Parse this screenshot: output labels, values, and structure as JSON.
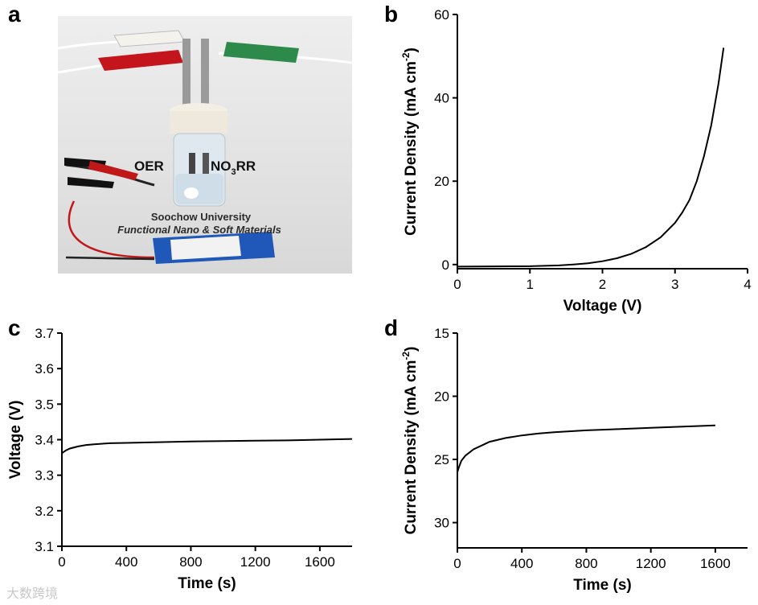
{
  "panels": {
    "a": "a",
    "b": "b",
    "c": "c",
    "d": "d"
  },
  "photo": {
    "left_label": "OER",
    "right_label_main": "NO",
    "right_label_sub": "3",
    "right_label_end": "RR",
    "line1": "Soochow University",
    "line2": "Functional Nano & Soft Materials"
  },
  "watermark": "大数跨境",
  "chart_data": [
    {
      "id": "b",
      "type": "line",
      "xlabel": "Voltage (V)",
      "ylabel_main": "Current Density (mA cm",
      "ylabel_sup": "-2",
      "ylabel_end": ")",
      "xlim": [
        0,
        4
      ],
      "ylim": [
        -1,
        60
      ],
      "xticks": [
        0,
        1,
        2,
        3,
        4
      ],
      "yticks": [
        0,
        20,
        40,
        60
      ],
      "x": [
        0,
        1.0,
        1.2,
        1.4,
        1.6,
        1.8,
        2.0,
        2.2,
        2.4,
        2.6,
        2.8,
        3.0,
        3.1,
        3.2,
        3.3,
        3.4,
        3.5,
        3.6,
        3.67
      ],
      "y": [
        -0.5,
        -0.4,
        -0.3,
        -0.2,
        0.0,
        0.3,
        0.8,
        1.5,
        2.6,
        4.2,
        6.5,
        10.0,
        12.5,
        15.5,
        20.0,
        26.0,
        33.5,
        43.5,
        52.0
      ]
    },
    {
      "id": "c",
      "type": "line",
      "xlabel": "Time (s)",
      "ylabel": "Voltage (V)",
      "xlim": [
        0,
        1800
      ],
      "ylim": [
        3.1,
        3.7
      ],
      "xticks": [
        0,
        400,
        800,
        1200,
        1600
      ],
      "yticks": [
        3.1,
        3.2,
        3.3,
        3.4,
        3.5,
        3.6,
        3.7
      ],
      "x": [
        0,
        25,
        50,
        100,
        150,
        200,
        300,
        400,
        600,
        800,
        1000,
        1200,
        1400,
        1600,
        1800
      ],
      "y": [
        3.362,
        3.37,
        3.375,
        3.381,
        3.385,
        3.387,
        3.39,
        3.391,
        3.393,
        3.395,
        3.396,
        3.397,
        3.398,
        3.4,
        3.402
      ]
    },
    {
      "id": "d",
      "type": "line",
      "xlabel": "Time (s)",
      "ylabel_main": "Current Density (mA cm",
      "ylabel_sup": "-2",
      "ylabel_end": ")",
      "xlim": [
        0,
        1800
      ],
      "ylim": [
        15,
        32
      ],
      "y_inverted": true,
      "xticks": [
        0,
        400,
        800,
        1200,
        1600
      ],
      "yticks": [
        15,
        20,
        25,
        30
      ],
      "x": [
        0,
        10,
        25,
        50,
        100,
        150,
        200,
        300,
        400,
        500,
        600,
        800,
        1000,
        1200,
        1400,
        1600
      ],
      "y": [
        26.0,
        25.6,
        25.1,
        24.7,
        24.2,
        23.9,
        23.6,
        23.3,
        23.1,
        22.95,
        22.85,
        22.7,
        22.6,
        22.5,
        22.4,
        22.3
      ]
    }
  ]
}
